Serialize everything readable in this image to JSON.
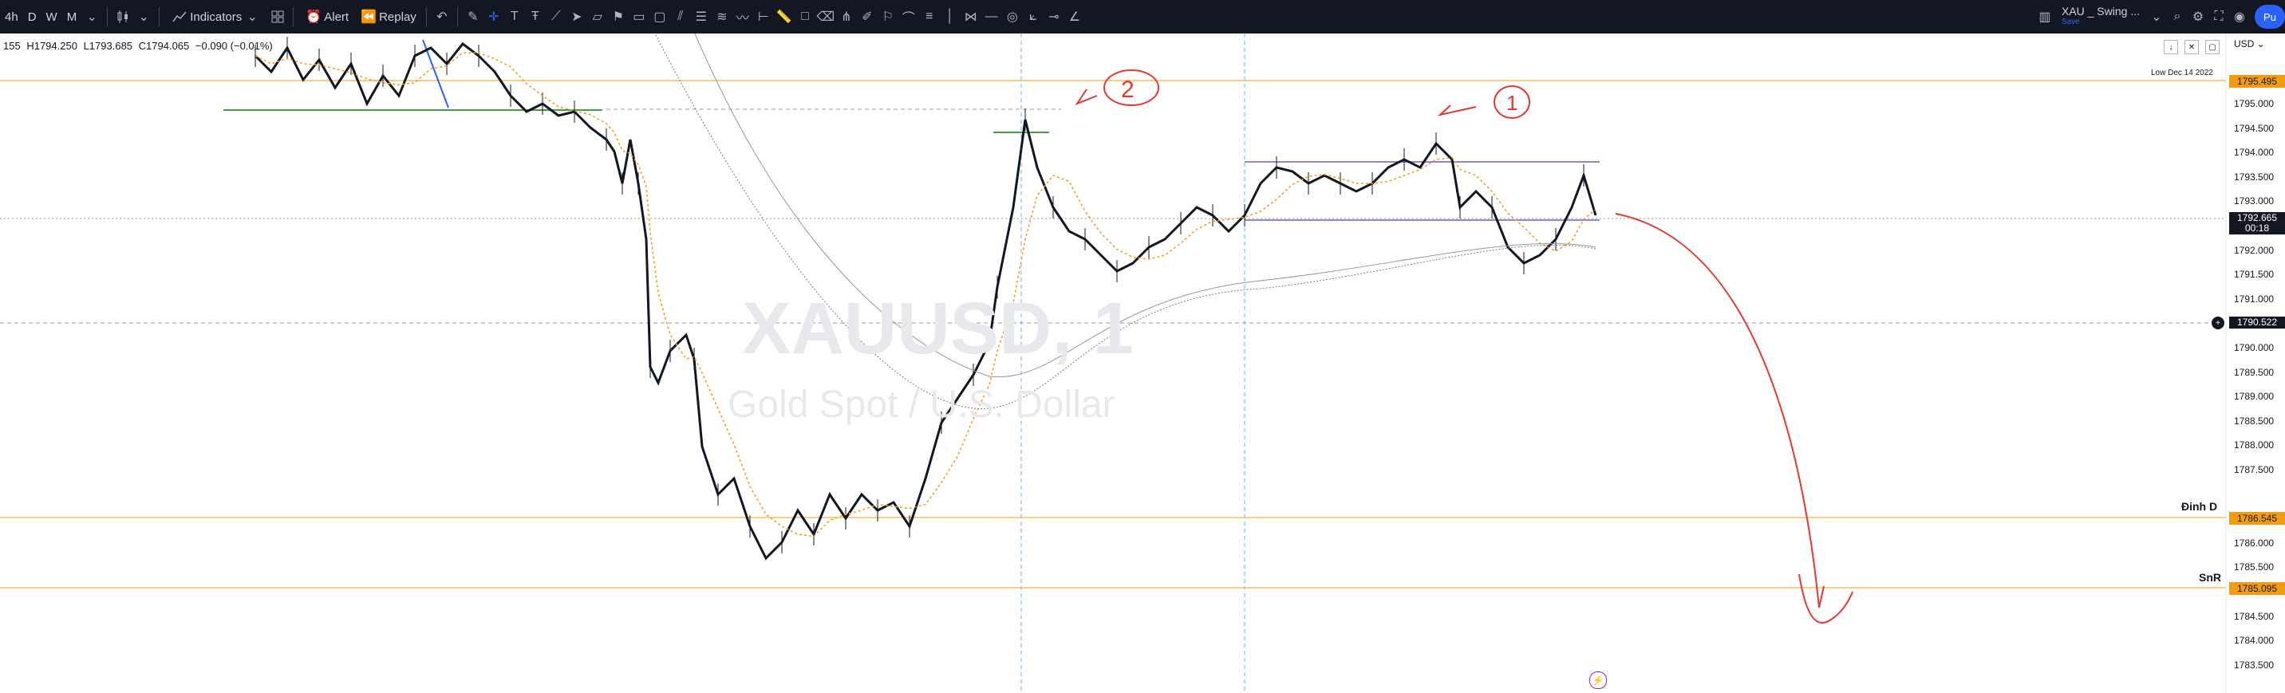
{
  "toolbar": {
    "timeframes": [
      "4h",
      "D",
      "W",
      "M"
    ],
    "indicators_label": "Indicators",
    "alert_label": "Alert",
    "replay_label": "Replay",
    "symbol_name": "XAU _ Swing ...",
    "symbol_status": "Save",
    "publish_label": "Pu"
  },
  "legend": {
    "prefix": "155",
    "high": "H1794.250",
    "low": "L1793.685",
    "close": "C1794.065",
    "change": "−0.090 (−0.01%)"
  },
  "watermark": {
    "symbol": "XAUUSD, 1",
    "description": "Gold Spot / U.S. Dollar"
  },
  "price_axis": {
    "currency": "USD",
    "note": "Low Dec 14 2022",
    "ticks": [
      "1795.000",
      "1794.500",
      "1794.000",
      "1793.500",
      "1793.000",
      "1792.000",
      "1791.500",
      "1791.000",
      "1790.000",
      "1789.500",
      "1789.000",
      "1788.500",
      "1788.000",
      "1787.500",
      "1786.000",
      "1785.500",
      "1784.500",
      "1784.000",
      "1783.500"
    ],
    "tags": {
      "top": "1795.495",
      "current_price": "1792.665",
      "countdown": "00:18",
      "crosshair": "1790.522",
      "dinh_d": "1786.545",
      "snr": "1785.095"
    }
  },
  "annotations": {
    "dinh_d_label": "Đinh D",
    "snr_label": "SnR",
    "mark_2": "2",
    "mark_1": "1"
  },
  "colors": {
    "toolbar_bg": "#131722",
    "orange_line": "#f39c12",
    "red_drawing": "#e53935",
    "green_line": "#43a047",
    "purple_line": "#7e57c2",
    "blue_dash": "#64b5f6"
  }
}
